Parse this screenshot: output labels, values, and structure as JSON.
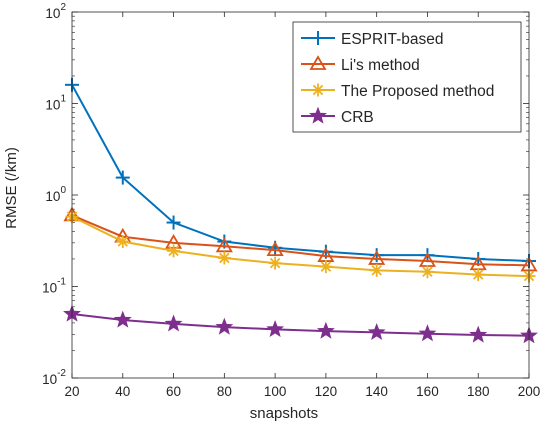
{
  "chart_data": {
    "type": "line",
    "title": "",
    "xlabel": "snapshots",
    "ylabel": "RMSE (/km)",
    "x": [
      20,
      40,
      60,
      80,
      100,
      120,
      140,
      160,
      180,
      200
    ],
    "xlim": [
      20,
      200
    ],
    "ylim": [
      0.01,
      100
    ],
    "yscale": "log",
    "xticks": [
      "20",
      "40",
      "60",
      "80",
      "100",
      "120",
      "140",
      "160",
      "180",
      "200"
    ],
    "yticks": [
      {
        "base": "10",
        "exp": "-2"
      },
      {
        "base": "10",
        "exp": "-1"
      },
      {
        "base": "10",
        "exp": "0"
      },
      {
        "base": "10",
        "exp": "1"
      },
      {
        "base": "10",
        "exp": "2"
      }
    ],
    "legend_position": "top-right",
    "series": [
      {
        "name": "ESPRIT-based",
        "color": "#0072BD",
        "marker": "plus",
        "values": [
          16,
          1.55,
          0.5,
          0.31,
          0.265,
          0.24,
          0.22,
          0.22,
          0.2,
          0.19
        ]
      },
      {
        "name": "Li's method",
        "color": "#D95319",
        "marker": "triangle",
        "values": [
          0.6,
          0.35,
          0.3,
          0.275,
          0.25,
          0.215,
          0.2,
          0.19,
          0.175,
          0.17
        ]
      },
      {
        "name": "The Proposed method",
        "color": "#EDB120",
        "marker": "asterisk",
        "values": [
          0.58,
          0.31,
          0.245,
          0.205,
          0.18,
          0.165,
          0.15,
          0.145,
          0.135,
          0.13
        ]
      },
      {
        "name": "CRB",
        "color": "#7E2F8E",
        "marker": "star",
        "values": [
          0.05,
          0.043,
          0.039,
          0.036,
          0.034,
          0.0325,
          0.0315,
          0.0305,
          0.0295,
          0.029
        ]
      }
    ]
  }
}
